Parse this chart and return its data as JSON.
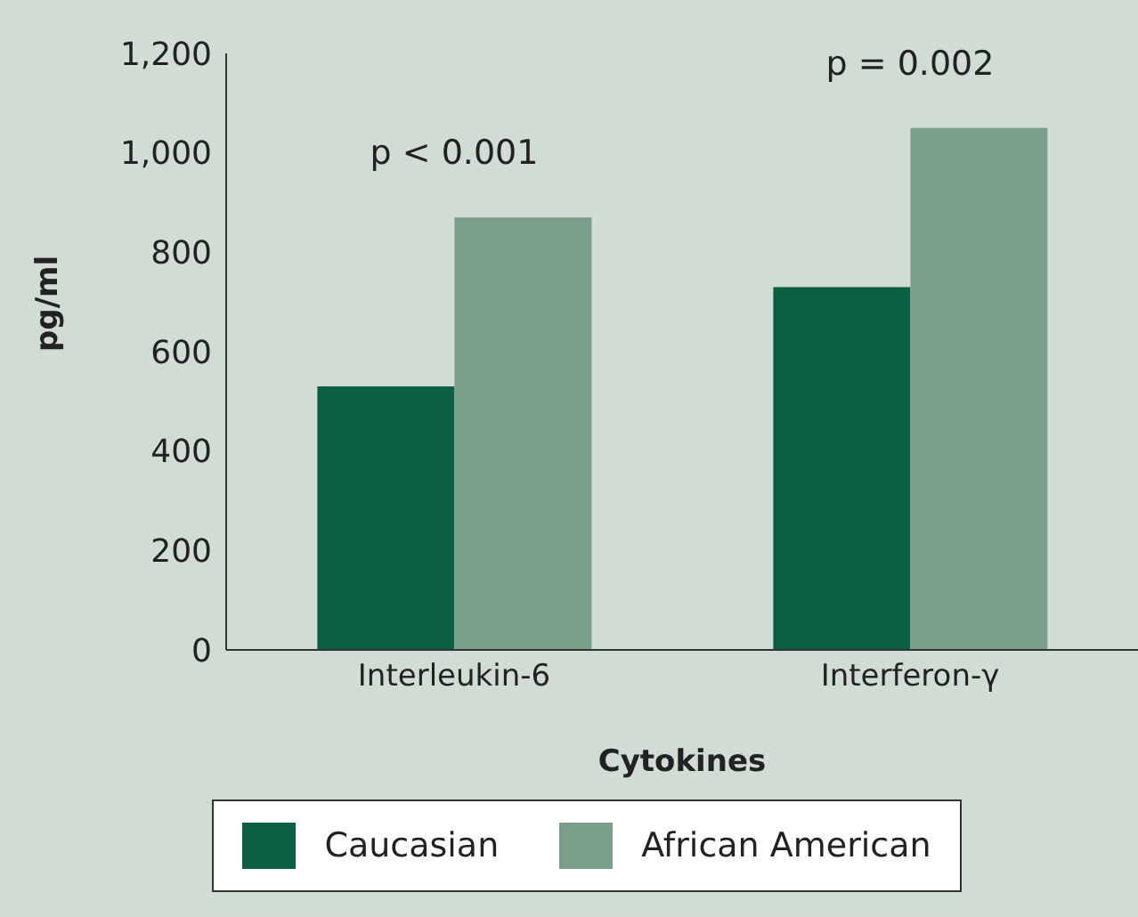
{
  "chart_data": {
    "type": "bar",
    "xlabel": "Cytokines",
    "ylabel": "pg/ml",
    "categories": [
      "Interleukin-6",
      "Interferon-γ"
    ],
    "series": [
      {
        "name": "Caucasian",
        "color": "#0a6040",
        "values": [
          530,
          730
        ]
      },
      {
        "name": "African American",
        "color": "#7a9e8a",
        "values": [
          870,
          1050
        ]
      }
    ],
    "ylim": [
      0,
      1200
    ],
    "yticks": [
      0,
      200,
      400,
      600,
      800,
      {
        "value": 1000,
        "label": "1,000"
      },
      {
        "value": 1200,
        "label": "1,200"
      }
    ],
    "annotations": [
      "p < 0.001",
      "p = 0.002"
    ],
    "grid": false,
    "legend": "bottom"
  }
}
